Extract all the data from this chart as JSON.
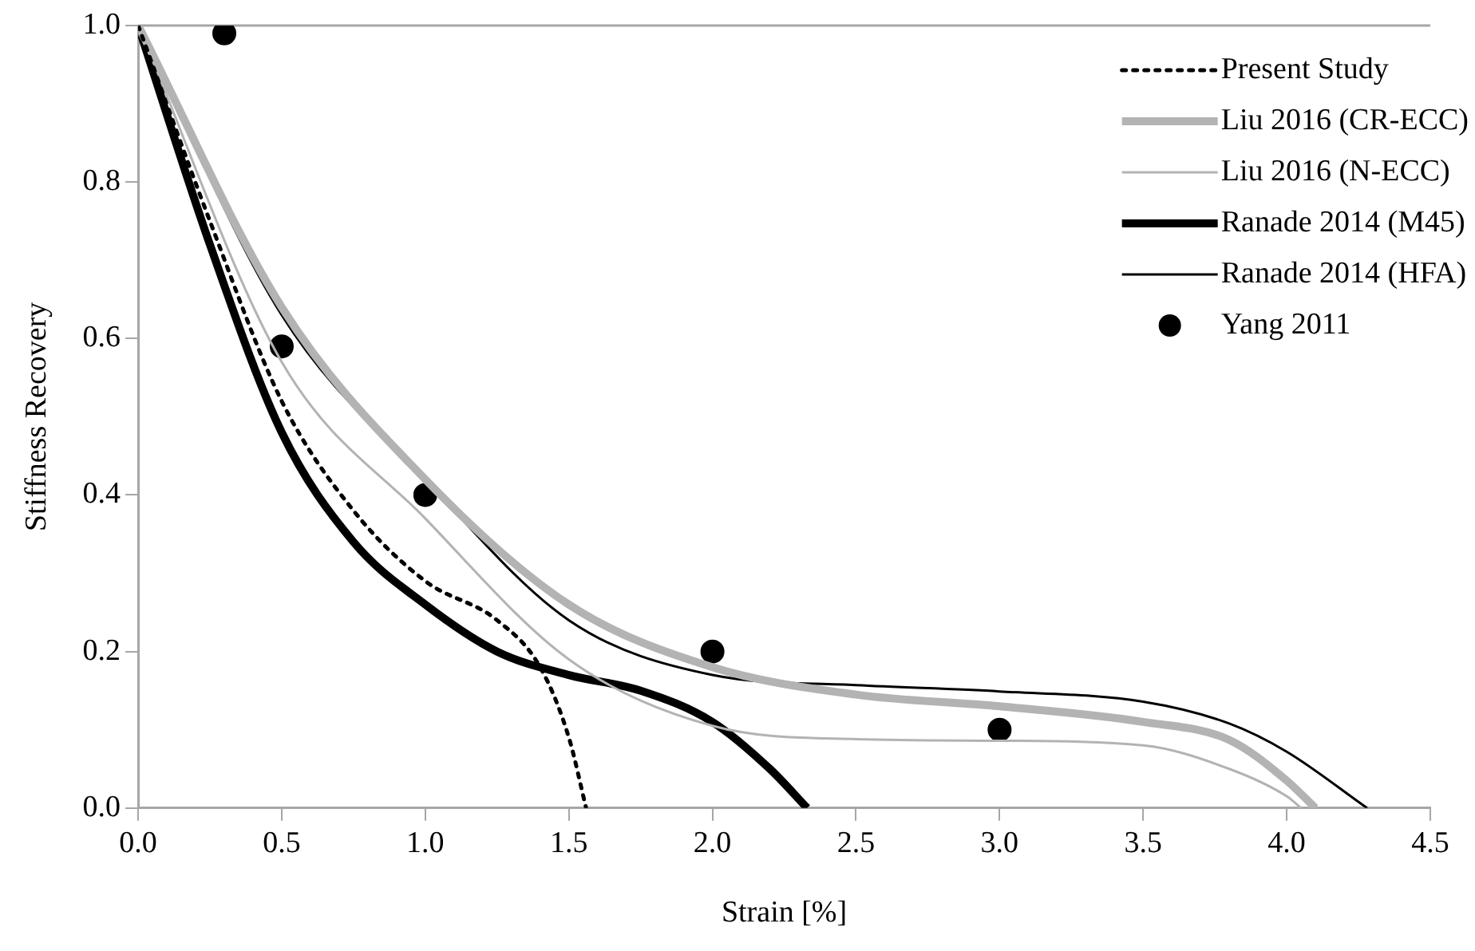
{
  "chart_data": {
    "type": "line",
    "xlabel": "Strain [%]",
    "ylabel": "Stiffness Recovery",
    "xlim": [
      0,
      4.5
    ],
    "xticks": [
      {
        "value": 0,
        "label": "0.0"
      },
      {
        "value": 0.5,
        "label": "0.5"
      },
      {
        "value": 1,
        "label": "1.0"
      },
      {
        "value": 1.5,
        "label": "1.5"
      },
      {
        "value": 2,
        "label": "2.0"
      },
      {
        "value": 2.5,
        "label": "2.5"
      },
      {
        "value": 3,
        "label": "3.0"
      },
      {
        "value": 3.5,
        "label": "3.5"
      },
      {
        "value": 4,
        "label": "4.0"
      },
      {
        "value": 4.5,
        "label": "4.5"
      }
    ],
    "ylim": [
      0,
      1
    ],
    "yticks": [
      {
        "value": 0,
        "label": "0.0"
      },
      {
        "value": 0.2,
        "label": "0.2"
      },
      {
        "value": 0.4,
        "label": "0.4"
      },
      {
        "value": 0.6,
        "label": "0.6"
      },
      {
        "value": 0.8,
        "label": "0.8"
      },
      {
        "value": 1,
        "label": "1.0"
      }
    ],
    "grid": false,
    "legend": "top right",
    "series": [
      {
        "name": "Present Study",
        "color": "#000000",
        "line_style": "dotted",
        "x": [
          0,
          0.25,
          0.5,
          0.75,
          1,
          1.25,
          1.4,
          1.5,
          1.56
        ],
        "values": [
          1,
          0.75,
          0.52,
          0.38,
          0.29,
          0.24,
          0.18,
          0.09,
          0
        ]
      },
      {
        "name": "Liu 2016 (CR-ECC)",
        "color": "#b3b3b3",
        "x": [
          0,
          0.5,
          1,
          1.5,
          2,
          2.5,
          3,
          3.5,
          3.8,
          4,
          4.1
        ],
        "values": [
          1,
          0.64,
          0.42,
          0.26,
          0.18,
          0.145,
          0.13,
          0.11,
          0.087,
          0.035,
          0
        ]
      },
      {
        "name": "Liu 2016 (N-ECC)",
        "color": "#b3b3b3",
        "x": [
          0,
          0.5,
          1,
          1.5,
          2,
          2.5,
          3,
          3.5,
          3.8,
          4,
          4.05
        ],
        "values": [
          1,
          0.57,
          0.37,
          0.19,
          0.105,
          0.088,
          0.086,
          0.08,
          0.05,
          0.015,
          0
        ]
      },
      {
        "name": "Ranade 2014 (M45)",
        "color": "#000000",
        "x": [
          0,
          0.25,
          0.5,
          0.75,
          1,
          1.25,
          1.5,
          1.75,
          2,
          2.2,
          2.33
        ],
        "values": [
          1,
          0.72,
          0.48,
          0.34,
          0.26,
          0.2,
          0.17,
          0.15,
          0.11,
          0.05,
          0
        ]
      },
      {
        "name": "Ranade 2014 (HFA)",
        "color": "#000000",
        "x": [
          0,
          0.5,
          1,
          1.5,
          2,
          2.5,
          3,
          3.5,
          3.8,
          4,
          4.28
        ],
        "values": [
          1,
          0.63,
          0.42,
          0.24,
          0.17,
          0.157,
          0.149,
          0.136,
          0.108,
          0.072,
          0
        ]
      },
      {
        "name": "Yang 2011",
        "type": "scatter",
        "marker": "circle",
        "color": "#000000",
        "x": [
          0.3,
          0.5,
          1,
          2,
          3
        ],
        "values": [
          0.99,
          0.59,
          0.4,
          0.2,
          0.1
        ]
      }
    ]
  }
}
